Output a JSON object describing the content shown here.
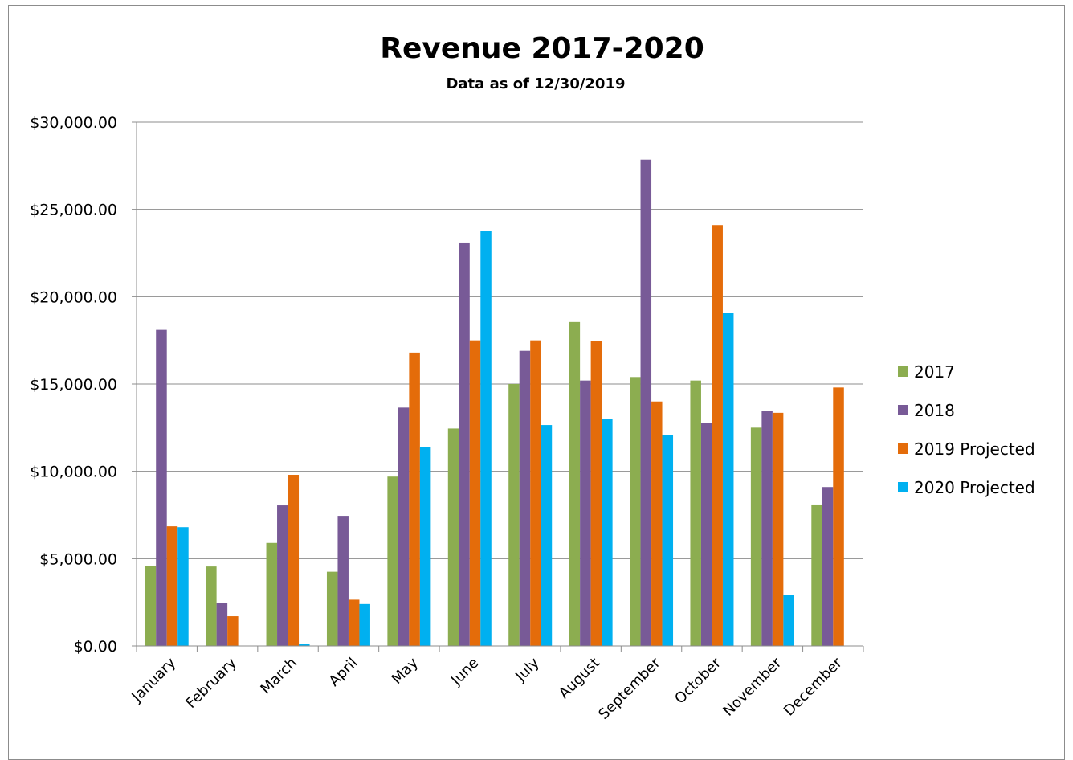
{
  "chart_data": {
    "type": "bar",
    "title": "Revenue 2017-2020",
    "subtitle": "Data as of 12/30/2019",
    "categories": [
      "January",
      "February",
      "March",
      "April",
      "May",
      "June",
      "July",
      "August",
      "September",
      "October",
      "November",
      "December"
    ],
    "series": [
      {
        "name": "2017",
        "color": "#8cad50",
        "values": [
          4600,
          4550,
          5900,
          4250,
          9700,
          12450,
          15000,
          18550,
          15400,
          15200,
          12500,
          8100
        ]
      },
      {
        "name": "2018",
        "color": "#785a97",
        "values": [
          18100,
          2450,
          8050,
          7450,
          13650,
          23100,
          16900,
          15200,
          27850,
          12750,
          13450,
          9100
        ]
      },
      {
        "name": "2019 Projected",
        "color": "#e46c0a",
        "values": [
          6850,
          1700,
          9800,
          2650,
          16800,
          17500,
          17500,
          17450,
          14000,
          24100,
          13350,
          14800
        ]
      },
      {
        "name": "2020 Projected",
        "color": "#00b0f0",
        "values": [
          6800,
          0,
          100,
          2400,
          11400,
          23750,
          12650,
          13000,
          12100,
          19050,
          2900,
          0
        ]
      }
    ],
    "ylim": [
      0,
      30000
    ],
    "yticks": [
      "$0.00",
      "$5,000.00",
      "$10,000.00",
      "$15,000.00",
      "$20,000.00",
      "$25,000.00",
      "$30,000.00"
    ],
    "grid": true,
    "legend_position": "right"
  }
}
